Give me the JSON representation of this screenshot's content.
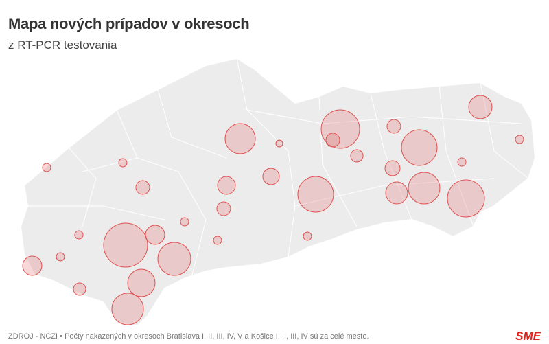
{
  "header": {
    "title": "Mapa nových prípadov v okresoch",
    "subtitle": "z RT-PCR testovania"
  },
  "footer": {
    "source": "ZDROJ - NCZI • Počty nakazených v okresoch Bratislava I, II, III, IV, V a Košice I, II, III, IV sú za celé mesto.",
    "logo": "SME"
  }
}
